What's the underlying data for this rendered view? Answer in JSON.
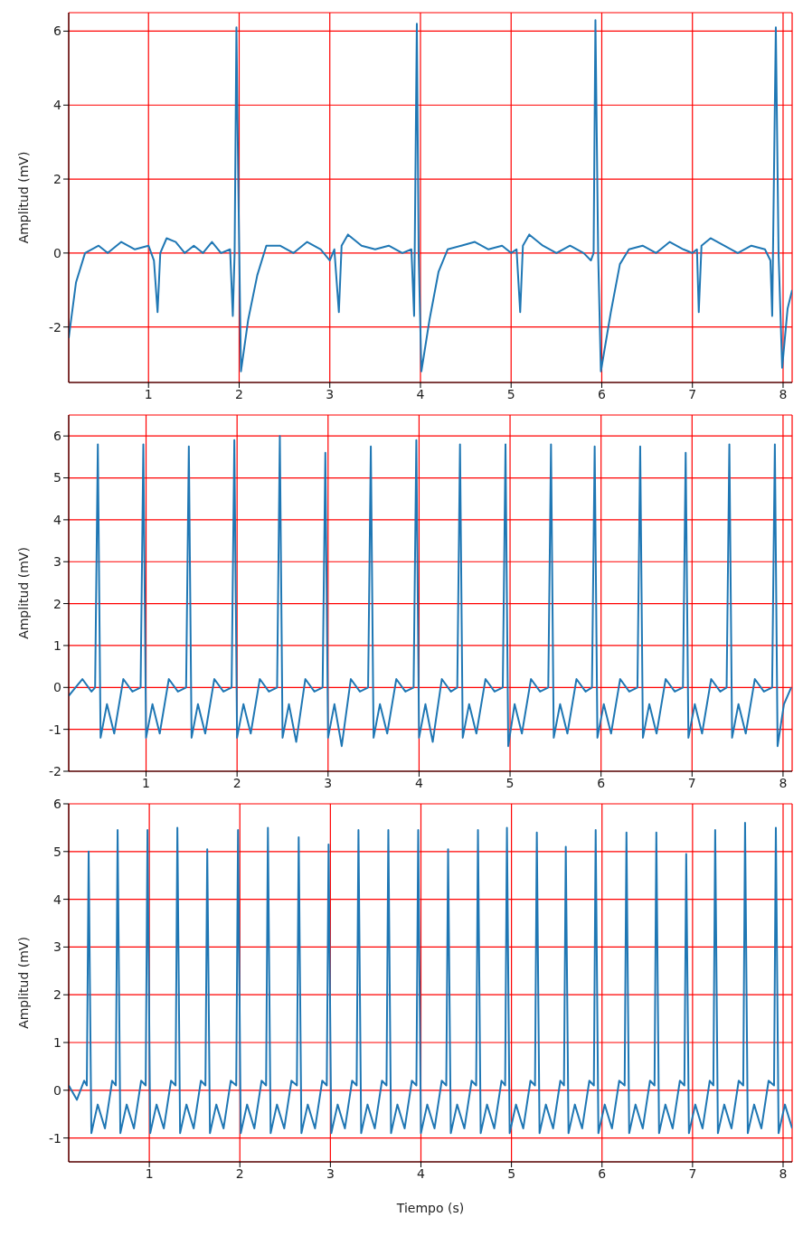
{
  "chart_data": [
    {
      "type": "line",
      "ylabel": "Amplitud (mV)",
      "xlim": [
        0.12,
        8.1
      ],
      "ylim": [
        -3.5,
        6.5
      ],
      "xticks": [
        1,
        2,
        3,
        4,
        5,
        6,
        7,
        8
      ],
      "yticks": [
        -2,
        0,
        2,
        4,
        6
      ],
      "grid": true,
      "x": [
        0.12,
        0.2,
        0.3,
        0.45,
        0.55,
        0.7,
        0.85,
        1.0,
        1.06,
        1.1,
        1.13,
        1.2,
        1.3,
        1.4,
        1.5,
        1.6,
        1.7,
        1.8,
        1.9,
        1.93,
        1.95,
        1.97,
        1.99,
        2.02,
        2.1,
        2.2,
        2.3,
        2.45,
        2.6,
        2.75,
        2.9,
        3.0,
        3.05,
        3.1,
        3.13,
        3.2,
        3.35,
        3.5,
        3.65,
        3.8,
        3.9,
        3.93,
        3.96,
        3.98,
        4.01,
        4.1,
        4.2,
        4.3,
        4.45,
        4.6,
        4.75,
        4.9,
        5.0,
        5.06,
        5.1,
        5.13,
        5.2,
        5.35,
        5.5,
        5.65,
        5.8,
        5.88,
        5.91,
        5.93,
        5.96,
        5.99,
        6.1,
        6.2,
        6.3,
        6.45,
        6.6,
        6.75,
        6.9,
        7.0,
        7.05,
        7.07,
        7.1,
        7.2,
        7.35,
        7.5,
        7.65,
        7.8,
        7.86,
        7.88,
        7.92,
        7.95,
        7.99,
        8.05,
        8.1
      ],
      "series": [
        {
          "color": "#1f77b4",
          "values": [
            -2.3,
            -0.8,
            0.0,
            0.2,
            0.0,
            0.3,
            0.1,
            0.2,
            -0.2,
            -1.6,
            0.0,
            0.4,
            0.3,
            0.0,
            0.2,
            0.0,
            0.3,
            0.0,
            0.1,
            -1.7,
            0.0,
            6.1,
            2.0,
            -3.2,
            -1.8,
            -0.6,
            0.2,
            0.2,
            0.0,
            0.3,
            0.1,
            -0.2,
            0.1,
            -1.6,
            0.2,
            0.5,
            0.2,
            0.1,
            0.2,
            0.0,
            0.1,
            -1.7,
            6.2,
            0.0,
            -3.2,
            -1.8,
            -0.5,
            0.1,
            0.2,
            0.3,
            0.1,
            0.2,
            0.0,
            0.1,
            -1.6,
            0.2,
            0.5,
            0.2,
            0.0,
            0.2,
            0.0,
            -0.2,
            0.0,
            6.3,
            0.0,
            -3.2,
            -1.6,
            -0.3,
            0.1,
            0.2,
            0.0,
            0.3,
            0.1,
            0.0,
            0.1,
            -1.6,
            0.2,
            0.4,
            0.2,
            0.0,
            0.2,
            0.1,
            -0.2,
            -1.7,
            6.1,
            0.0,
            -3.1,
            -1.5,
            -1.0
          ]
        }
      ]
    },
    {
      "type": "line",
      "ylabel": "Amplitud (mV)",
      "xlim": [
        0.15,
        8.1
      ],
      "ylim": [
        -2,
        6.5
      ],
      "xticks": [
        1,
        2,
        3,
        4,
        5,
        6,
        7,
        8
      ],
      "yticks": [
        -2,
        -1,
        0,
        1,
        2,
        3,
        4,
        5,
        6
      ],
      "grid": true,
      "x": [
        0.15,
        0.3,
        0.4,
        0.44,
        0.47,
        0.5,
        0.57,
        0.65,
        0.75,
        0.85,
        0.94,
        0.97,
        1.0,
        1.07,
        1.15,
        1.25,
        1.35,
        1.44,
        1.47,
        1.5,
        1.57,
        1.65,
        1.75,
        1.85,
        1.94,
        1.97,
        2.0,
        2.07,
        2.15,
        2.25,
        2.35,
        2.44,
        2.47,
        2.5,
        2.57,
        2.65,
        2.75,
        2.85,
        2.94,
        2.97,
        3.0,
        3.07,
        3.15,
        3.25,
        3.35,
        3.44,
        3.47,
        3.5,
        3.57,
        3.65,
        3.75,
        3.85,
        3.94,
        3.97,
        4.0,
        4.07,
        4.15,
        4.25,
        4.35,
        4.42,
        4.45,
        4.48,
        4.55,
        4.63,
        4.73,
        4.83,
        4.92,
        4.95,
        4.98,
        5.05,
        5.13,
        5.23,
        5.33,
        5.42,
        5.45,
        5.48,
        5.55,
        5.63,
        5.73,
        5.83,
        5.9,
        5.93,
        5.96,
        6.03,
        6.11,
        6.21,
        6.31,
        6.4,
        6.43,
        6.46,
        6.53,
        6.61,
        6.71,
        6.81,
        6.9,
        6.93,
        6.96,
        7.03,
        7.11,
        7.21,
        7.31,
        7.38,
        7.41,
        7.44,
        7.51,
        7.59,
        7.69,
        7.79,
        7.88,
        7.91,
        7.94,
        8.01,
        8.09
      ],
      "series": [
        {
          "color": "#1f77b4",
          "values": [
            -0.2,
            0.2,
            -0.1,
            0,
            5.8,
            -1.2,
            -0.4,
            -1.1,
            0.2,
            -0.1,
            0,
            5.8,
            -1.2,
            -0.4,
            -1.1,
            0.2,
            -0.1,
            0,
            5.75,
            -1.2,
            -0.4,
            -1.1,
            0.2,
            -0.1,
            0,
            5.9,
            -1.2,
            -0.4,
            -1.1,
            0.2,
            -0.1,
            0,
            6.0,
            -1.2,
            -0.4,
            -1.3,
            0.2,
            -0.1,
            0,
            5.6,
            -1.2,
            -0.4,
            -1.4,
            0.2,
            -0.1,
            0,
            5.75,
            -1.2,
            -0.4,
            -1.1,
            0.2,
            -0.1,
            0,
            5.9,
            -1.2,
            -0.4,
            -1.3,
            0.2,
            -0.1,
            0,
            5.8,
            -1.2,
            -0.4,
            -1.1,
            0.2,
            -0.1,
            0,
            5.8,
            -1.4,
            -0.4,
            -1.1,
            0.2,
            -0.1,
            0,
            5.8,
            -1.2,
            -0.4,
            -1.1,
            0.2,
            -0.1,
            0,
            5.75,
            -1.2,
            -0.4,
            -1.1,
            0.2,
            -0.1,
            0,
            5.75,
            -1.2,
            -0.4,
            -1.1,
            0.2,
            -0.1,
            0,
            5.6,
            -1.2,
            -0.4,
            -1.1,
            0.2,
            -0.1,
            0,
            5.8,
            -1.2,
            -0.4,
            -1.1,
            0.2,
            -0.1,
            0,
            5.8,
            -1.4,
            -0.4,
            0.0
          ]
        }
      ]
    },
    {
      "type": "line",
      "ylabel": "Amplitud (mV)",
      "xlabel": "Tiempo (s)",
      "xlim": [
        0.11,
        8.1
      ],
      "ylim": [
        -1.5,
        6
      ],
      "xticks": [
        1,
        2,
        3,
        4,
        5,
        6,
        7,
        8
      ],
      "yticks": [
        -1,
        0,
        1,
        2,
        3,
        4,
        5,
        6
      ],
      "grid": true,
      "x": [
        0.11,
        0.2,
        0.28,
        0.31,
        0.33,
        0.36,
        0.43,
        0.51,
        0.59,
        0.63,
        0.65,
        0.68,
        0.75,
        0.83,
        0.91,
        0.96,
        0.98,
        1.01,
        1.08,
        1.16,
        1.24,
        1.29,
        1.31,
        1.34,
        1.41,
        1.49,
        1.57,
        1.62,
        1.64,
        1.67,
        1.74,
        1.82,
        1.9,
        1.96,
        1.98,
        2.01,
        2.08,
        2.16,
        2.24,
        2.29,
        2.31,
        2.34,
        2.41,
        2.49,
        2.57,
        2.63,
        2.65,
        2.68,
        2.75,
        2.83,
        2.91,
        2.96,
        2.98,
        3.01,
        3.08,
        3.16,
        3.24,
        3.29,
        3.31,
        3.34,
        3.41,
        3.49,
        3.57,
        3.62,
        3.64,
        3.67,
        3.74,
        3.82,
        3.9,
        3.95,
        3.97,
        4.0,
        4.07,
        4.15,
        4.23,
        4.28,
        4.3,
        4.33,
        4.4,
        4.48,
        4.56,
        4.61,
        4.63,
        4.66,
        4.73,
        4.81,
        4.89,
        4.93,
        4.95,
        4.98,
        5.05,
        5.13,
        5.21,
        5.26,
        5.28,
        5.31,
        5.38,
        5.46,
        5.54,
        5.58,
        5.6,
        5.63,
        5.7,
        5.78,
        5.86,
        5.91,
        5.93,
        5.96,
        6.03,
        6.11,
        6.19,
        6.25,
        6.27,
        6.3,
        6.37,
        6.45,
        6.53,
        6.58,
        6.6,
        6.63,
        6.7,
        6.78,
        6.86,
        6.91,
        6.93,
        6.96,
        7.03,
        7.11,
        7.19,
        7.23,
        7.25,
        7.28,
        7.35,
        7.43,
        7.51,
        7.56,
        7.58,
        7.61,
        7.68,
        7.76,
        7.84,
        7.9,
        7.92,
        7.95,
        8.02,
        8.1
      ],
      "series": [
        {
          "color": "#1f77b4",
          "values": [
            0.1,
            -0.2,
            0.2,
            0.1,
            5.0,
            -0.9,
            -0.3,
            -0.8,
            0.2,
            0.1,
            5.45,
            -0.9,
            -0.3,
            -0.8,
            0.2,
            0.1,
            5.45,
            -0.9,
            -0.3,
            -0.8,
            0.2,
            0.1,
            5.5,
            -0.9,
            -0.3,
            -0.8,
            0.2,
            0.1,
            5.05,
            -0.9,
            -0.3,
            -0.8,
            0.2,
            0.1,
            5.45,
            -0.9,
            -0.3,
            -0.8,
            0.2,
            0.1,
            5.5,
            -0.9,
            -0.3,
            -0.8,
            0.2,
            0.1,
            5.3,
            -0.9,
            -0.3,
            -0.8,
            0.2,
            0.1,
            5.15,
            -0.9,
            -0.3,
            -0.8,
            0.2,
            0.1,
            5.45,
            -0.9,
            -0.3,
            -0.8,
            0.2,
            0.1,
            5.45,
            -0.9,
            -0.3,
            -0.8,
            0.2,
            0.1,
            5.45,
            -0.9,
            -0.3,
            -0.8,
            0.2,
            0.1,
            5.05,
            -0.9,
            -0.3,
            -0.8,
            0.2,
            0.1,
            5.45,
            -0.9,
            -0.3,
            -0.8,
            0.2,
            0.1,
            5.5,
            -0.9,
            -0.3,
            -0.8,
            0.2,
            0.1,
            5.4,
            -0.9,
            -0.3,
            -0.8,
            0.2,
            0.1,
            5.1,
            -0.9,
            -0.3,
            -0.8,
            0.2,
            0.1,
            5.45,
            -0.9,
            -0.3,
            -0.8,
            0.2,
            0.1,
            5.4,
            -0.9,
            -0.3,
            -0.8,
            0.2,
            0.1,
            5.4,
            -0.9,
            -0.3,
            -0.8,
            0.2,
            0.1,
            4.95,
            -0.9,
            -0.3,
            -0.8,
            0.2,
            0.1,
            5.45,
            -0.9,
            -0.3,
            -0.8,
            0.2,
            0.1,
            5.6,
            -0.9,
            -0.3,
            -0.8,
            0.2,
            0.1,
            5.5,
            -0.9,
            -0.3,
            -0.8
          ]
        }
      ]
    }
  ]
}
